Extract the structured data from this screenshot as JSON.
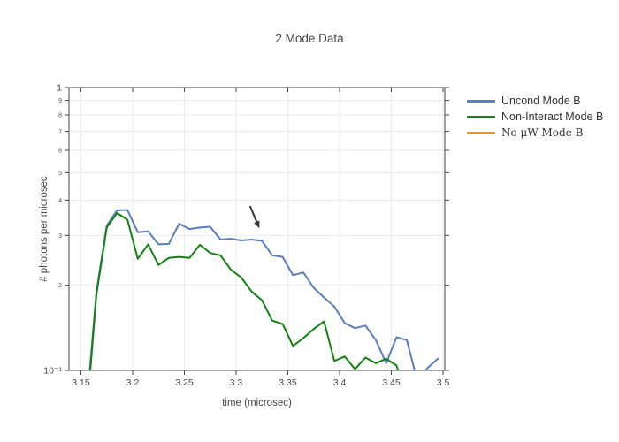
{
  "title": "2 Mode Data",
  "axes": {
    "x_label": "time (microsec)",
    "y_label": "# photons per microsec"
  },
  "legend": {
    "items": [
      {
        "label": "Uncond Mode B",
        "color": "#5a7dbe"
      },
      {
        "label": "Non-Interact Mode B",
        "color": "#128212"
      },
      {
        "label": "No μW Mode B",
        "color": "#ff8d19"
      }
    ]
  },
  "chart_data": {
    "type": "line",
    "title": "2 Mode Data",
    "xlabel": "time (microsec)",
    "ylabel": "# photons per microsec",
    "x_scale": "linear",
    "y_scale": "log",
    "x_range": [
      3.1385,
      3.5017
    ],
    "y_range": [
      0.1,
      1.0
    ],
    "grid": true,
    "legend_position": "right",
    "x_ticks": [
      {
        "value": 3.15,
        "label": "3.15"
      },
      {
        "value": 3.2,
        "label": "3.2"
      },
      {
        "value": 3.25,
        "label": "3.25"
      },
      {
        "value": 3.3,
        "label": "3.3"
      },
      {
        "value": 3.35,
        "label": "3.35"
      },
      {
        "value": 3.4,
        "label": "3.4"
      },
      {
        "value": 3.45,
        "label": "3.45"
      },
      {
        "value": 3.5,
        "label": "3.5"
      }
    ],
    "y_ticks": [
      {
        "value": 1.0,
        "label": "1",
        "major": true
      },
      {
        "value": 0.9,
        "label": "9",
        "major": false
      },
      {
        "value": 0.8,
        "label": "8",
        "major": false
      },
      {
        "value": 0.7,
        "label": "7",
        "major": false
      },
      {
        "value": 0.6,
        "label": "6",
        "major": false
      },
      {
        "value": 0.5,
        "label": "5",
        "major": false
      },
      {
        "value": 0.4,
        "label": "4",
        "major": false
      },
      {
        "value": 0.3,
        "label": "3",
        "major": false
      },
      {
        "value": 0.2,
        "label": "2",
        "major": false
      },
      {
        "value": 0.1,
        "label": "10⁻¹",
        "major": true
      }
    ],
    "x": [
      3.155,
      3.165,
      3.175,
      3.185,
      3.195,
      3.205,
      3.215,
      3.225,
      3.235,
      3.245,
      3.255,
      3.265,
      3.275,
      3.285,
      3.295,
      3.305,
      3.315,
      3.325,
      3.335,
      3.345,
      3.355,
      3.365,
      3.375,
      3.385,
      3.395,
      3.405,
      3.415,
      3.425,
      3.435,
      3.445,
      3.455,
      3.465,
      3.475,
      3.485,
      3.495
    ],
    "series": [
      {
        "name": "Uncond Mode B",
        "color": "#5a7dbe",
        "values": [
          0.07,
          0.19,
          0.325,
          0.368,
          0.369,
          0.308,
          0.31,
          0.279,
          0.28,
          0.33,
          0.316,
          0.32,
          0.322,
          0.29,
          0.292,
          0.288,
          0.29,
          0.287,
          0.255,
          0.252,
          0.217,
          0.222,
          0.196,
          0.181,
          0.168,
          0.147,
          0.141,
          0.144,
          0.128,
          0.106,
          0.131,
          0.128,
          0.092,
          0.102,
          0.11
        ]
      },
      {
        "name": "Non-Interact Mode B",
        "color": "#128212",
        "values": [
          0.065,
          0.185,
          0.32,
          0.36,
          0.341,
          0.248,
          0.279,
          0.236,
          0.25,
          0.252,
          0.25,
          0.278,
          0.26,
          0.255,
          0.227,
          0.213,
          0.19,
          0.177,
          0.15,
          0.146,
          0.122,
          0.13,
          0.14,
          0.149,
          0.108,
          0.112,
          0.101,
          0.111,
          0.106,
          0.11,
          0.104,
          0.08,
          0.085,
          0.08,
          0.085
        ]
      },
      {
        "name": "No μW Mode B",
        "color": "#ff8d19",
        "values": []
      }
    ],
    "annotation": {
      "type": "arrow",
      "tail": [
        3.3135,
        0.381
      ],
      "tip": [
        3.3225,
        0.318
      ],
      "color": "#333333"
    },
    "style": {
      "axis_color": "#444444",
      "grid_color": "#ebebeb",
      "tick_label_color": "#444444",
      "minor_tick_label_color": "#555555"
    }
  }
}
